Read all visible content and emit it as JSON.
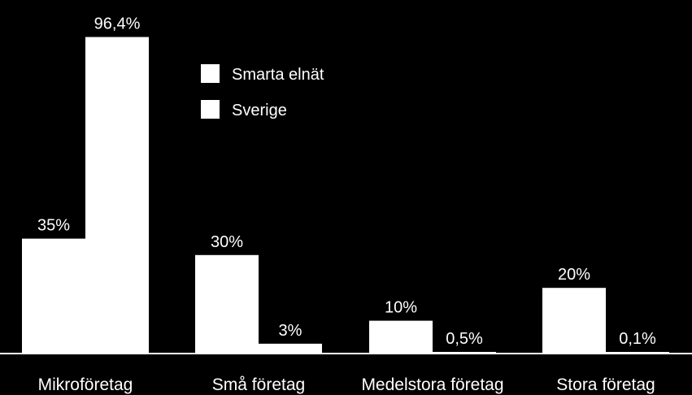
{
  "chart_data": {
    "type": "bar",
    "categories": [
      "Mikroföretag",
      "Små företag",
      "Medelstora företag",
      "Stora företag"
    ],
    "series": [
      {
        "name": "Smarta elnät",
        "values": [
          35,
          30,
          10,
          20
        ],
        "labels": [
          "35%",
          "30%",
          "10%",
          "20%"
        ],
        "color": "#ffffff"
      },
      {
        "name": "Sverige",
        "values": [
          96.4,
          3,
          0.5,
          0.1
        ],
        "labels": [
          "96,4%",
          "3%",
          "0,5%",
          "0,1%"
        ],
        "color": "#ffffff"
      }
    ],
    "ylim": [
      0,
      100
    ],
    "grid": false,
    "legend_position": "top-center",
    "background": "#000000"
  }
}
